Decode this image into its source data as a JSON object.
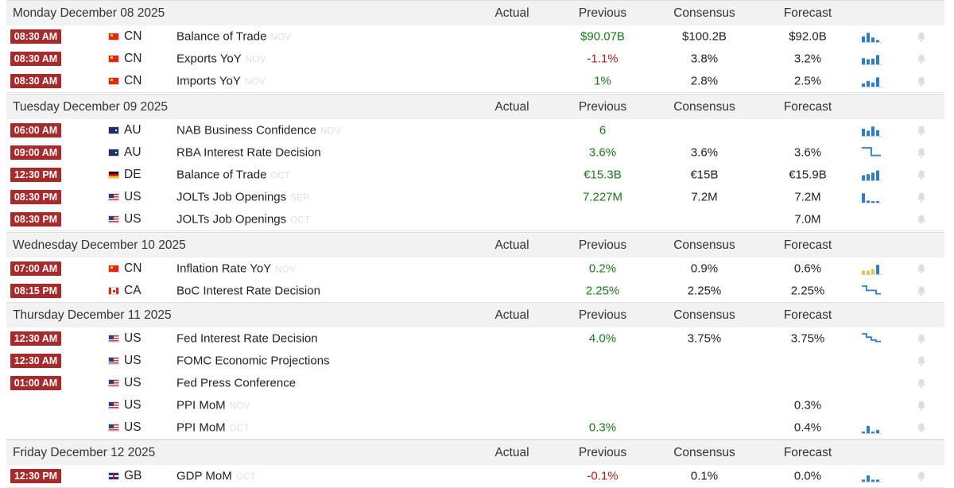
{
  "columns": {
    "actual": "Actual",
    "previous": "Previous",
    "consensus": "Consensus",
    "forecast": "Forecast"
  },
  "colors": {
    "time_badge": "#a82a2a",
    "positive": "#1a7a1a",
    "negative": "#b02020",
    "chart_blue": "#2f7ec1",
    "chart_yellow": "#e8c44a",
    "header_bg": "#f2f2f2"
  },
  "days": [
    {
      "date": "Monday December 08 2025",
      "events": [
        {
          "time": "08:30 AM",
          "flag": "cn",
          "country": "CN",
          "name": "Balance of Trade",
          "ref": "NOV",
          "actual": "",
          "previous": "$90.07B",
          "previous_color": "green",
          "consensus": "$100.2B",
          "forecast": "$92.0B",
          "chart": "bars-icon",
          "bars": [
            0.55,
            0.9,
            0.45,
            0.2
          ]
        },
        {
          "time": "08:30 AM",
          "flag": "cn",
          "country": "CN",
          "name": "Exports YoY",
          "ref": "NOV",
          "actual": "",
          "previous": "-1.1%",
          "previous_color": "red",
          "consensus": "3.8%",
          "forecast": "3.2%",
          "chart": "bars-icon",
          "bars": [
            0.6,
            0.5,
            0.55,
            0.9
          ]
        },
        {
          "time": "08:30 AM",
          "flag": "cn",
          "country": "CN",
          "name": "Imports YoY",
          "ref": "NOV",
          "actual": "",
          "previous": "1%",
          "previous_color": "green",
          "consensus": "2.8%",
          "forecast": "2.5%",
          "chart": "bars-icon",
          "bars": [
            0.3,
            0.55,
            0.4,
            0.9
          ]
        }
      ]
    },
    {
      "date": "Tuesday December 09 2025",
      "events": [
        {
          "time": "06:00 AM",
          "flag": "au",
          "country": "AU",
          "name": "NAB Business Confidence",
          "ref": "NOV",
          "actual": "",
          "previous": "6",
          "previous_color": "green",
          "consensus": "",
          "forecast": "",
          "chart": "bars-icon",
          "bars": [
            0.7,
            0.5,
            0.9,
            0.55
          ]
        },
        {
          "time": "09:00 AM",
          "flag": "au",
          "country": "AU",
          "name": "RBA Interest Rate Decision",
          "ref": "",
          "actual": "",
          "previous": "3.6%",
          "previous_color": "green",
          "consensus": "3.6%",
          "forecast": "3.6%",
          "chart": "step-line-icon",
          "steps": [
            1,
            1,
            0.2,
            0.2
          ]
        },
        {
          "time": "12:30 PM",
          "flag": "de",
          "country": "DE",
          "name": "Balance of Trade",
          "ref": "OCT",
          "actual": "",
          "previous": "€15.3B",
          "previous_color": "green",
          "consensus": "€15B",
          "forecast": "€15.9B",
          "chart": "bars-icon",
          "bars": [
            0.5,
            0.6,
            0.75,
            0.95
          ]
        },
        {
          "time": "08:30 PM",
          "flag": "us",
          "country": "US",
          "name": "JOLTs Job Openings",
          "ref": "SEP",
          "actual": "",
          "previous": "7.227M",
          "previous_color": "green",
          "consensus": "7.2M",
          "forecast": "7.2M",
          "chart": "bars-icon",
          "bars": [
            0.9,
            0.2,
            0.15,
            0.15
          ]
        },
        {
          "time": "08:30 PM",
          "flag": "us",
          "country": "US",
          "name": "JOLTs Job Openings",
          "ref": "OCT",
          "actual": "",
          "previous": "",
          "previous_color": "green",
          "consensus": "",
          "forecast": "7.0M",
          "chart": "",
          "bars": []
        }
      ]
    },
    {
      "date": "Wednesday December 10 2025",
      "events": [
        {
          "time": "07:00 AM",
          "flag": "cn",
          "country": "CN",
          "name": "Inflation Rate YoY",
          "ref": "NOV",
          "actual": "",
          "previous": "0.2%",
          "previous_color": "green",
          "consensus": "0.9%",
          "forecast": "0.6%",
          "chart": "mixed-bars-icon",
          "bars": [
            0.35,
            0.35,
            0.5,
            0.9
          ]
        },
        {
          "time": "08:15 PM",
          "flag": "ca",
          "country": "CA",
          "name": "BoC Interest Rate Decision",
          "ref": "",
          "actual": "",
          "previous": "2.25%",
          "previous_color": "green",
          "consensus": "2.25%",
          "forecast": "2.25%",
          "chart": "step-line-icon",
          "steps": [
            1,
            0.55,
            0.55,
            0.2
          ]
        }
      ]
    },
    {
      "date": "Thursday December 11 2025",
      "events": [
        {
          "time": "12:30 AM",
          "flag": "us",
          "country": "US",
          "name": "Fed Interest Rate Decision",
          "ref": "",
          "actual": "",
          "previous": "4.0%",
          "previous_color": "green",
          "consensus": "3.75%",
          "forecast": "3.75%",
          "chart": "step-line-icon",
          "steps": [
            1,
            0.65,
            0.35,
            0.2
          ]
        },
        {
          "time": "12:30 AM",
          "flag": "us",
          "country": "US",
          "name": "FOMC Economic Projections",
          "ref": "",
          "actual": "",
          "previous": "",
          "previous_color": "green",
          "consensus": "",
          "forecast": "",
          "chart": "",
          "bars": []
        },
        {
          "time": "01:00 AM",
          "flag": "us",
          "country": "US",
          "name": "Fed Press Conference",
          "ref": "",
          "actual": "",
          "previous": "",
          "previous_color": "green",
          "consensus": "",
          "forecast": "",
          "chart": "",
          "bars": []
        },
        {
          "time": "",
          "flag": "us",
          "country": "US",
          "name": "PPI MoM",
          "ref": "NOV",
          "actual": "",
          "previous": "",
          "previous_color": "green",
          "consensus": "",
          "forecast": "0.3%",
          "chart": "",
          "bars": []
        },
        {
          "time": "",
          "flag": "us",
          "country": "US",
          "name": "PPI MoM",
          "ref": "OCT",
          "actual": "",
          "previous": "0.3%",
          "previous_color": "green",
          "consensus": "",
          "forecast": "0.4%",
          "chart": "bars-icon",
          "bars": [
            0.15,
            0.7,
            0.15,
            0.3
          ]
        }
      ]
    },
    {
      "date": "Friday December 12 2025",
      "events": [
        {
          "time": "12:30 PM",
          "flag": "gb",
          "country": "GB",
          "name": "GDP MoM",
          "ref": "OCT",
          "actual": "",
          "previous": "-0.1%",
          "previous_color": "red",
          "consensus": "0.1%",
          "forecast": "0.0%",
          "chart": "bars-icon",
          "bars": [
            0.2,
            0.6,
            0.2,
            0.2
          ]
        }
      ]
    }
  ]
}
